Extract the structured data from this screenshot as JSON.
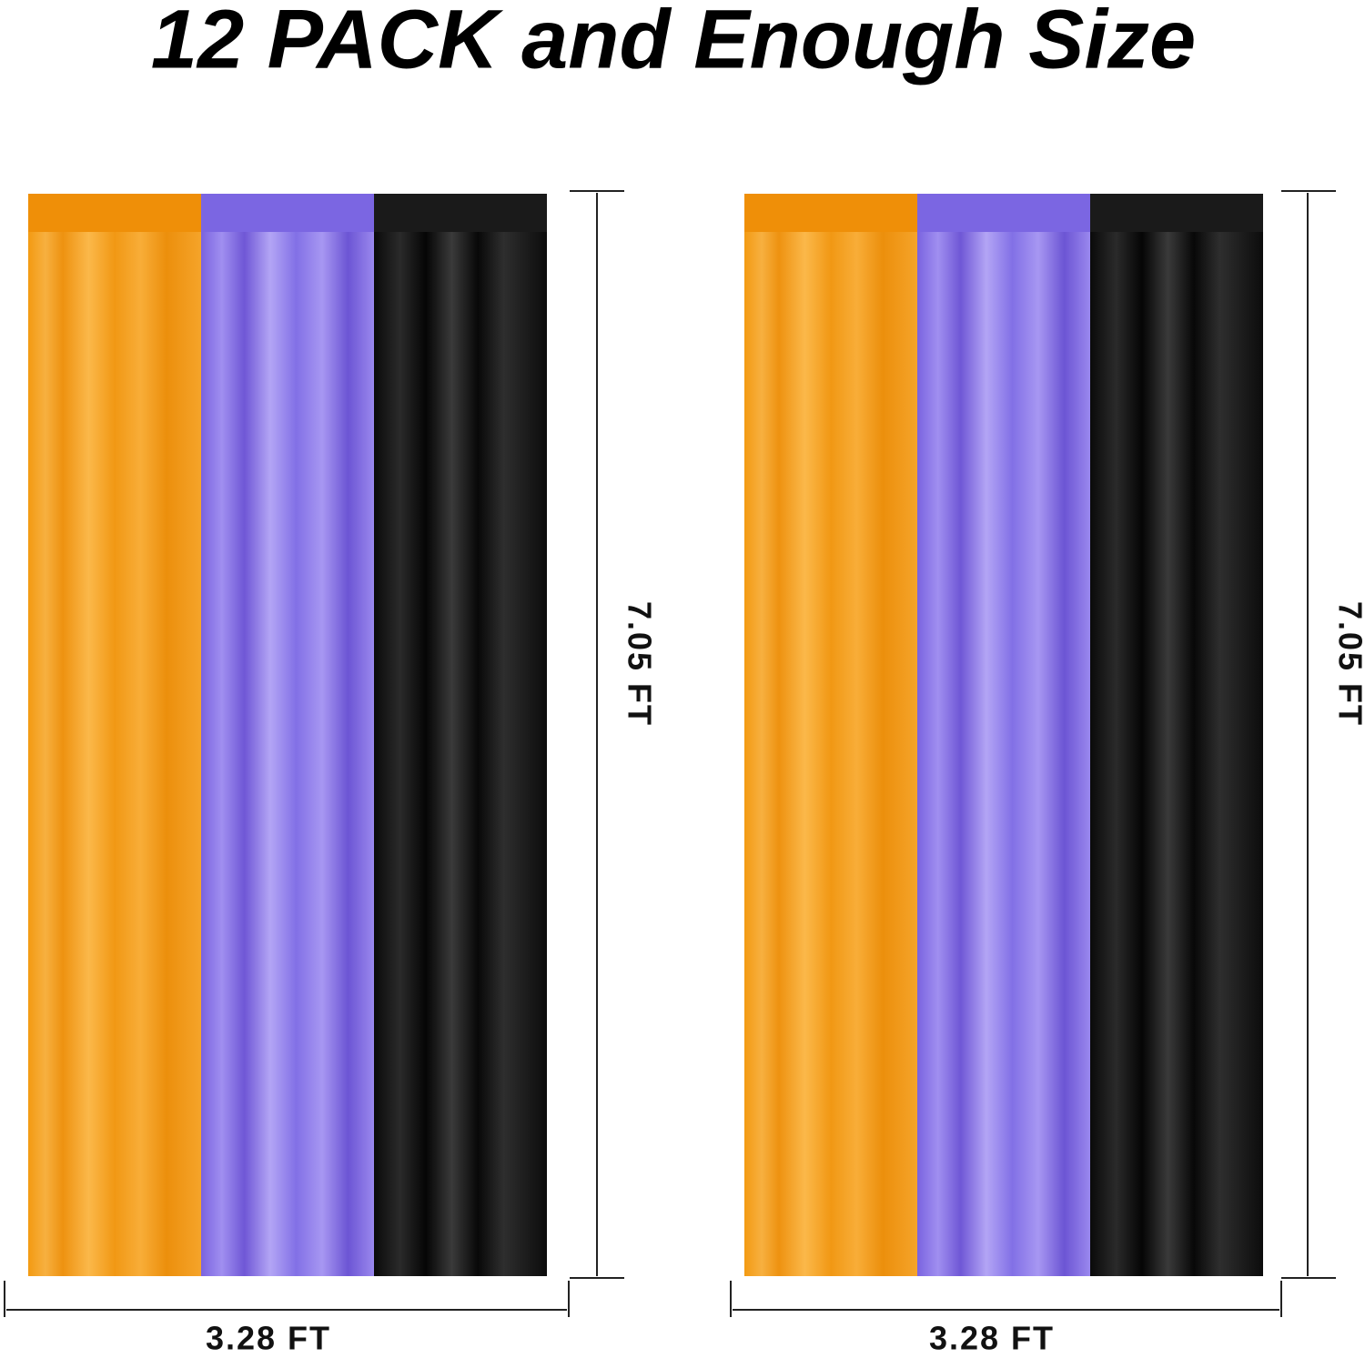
{
  "title": "12 PACK and Enough Size",
  "panels": [
    {
      "height_label": "7.05 FT",
      "width_label": "3.28 FT"
    },
    {
      "height_label": "7.05 FT",
      "width_label": "3.28 FT"
    }
  ]
}
